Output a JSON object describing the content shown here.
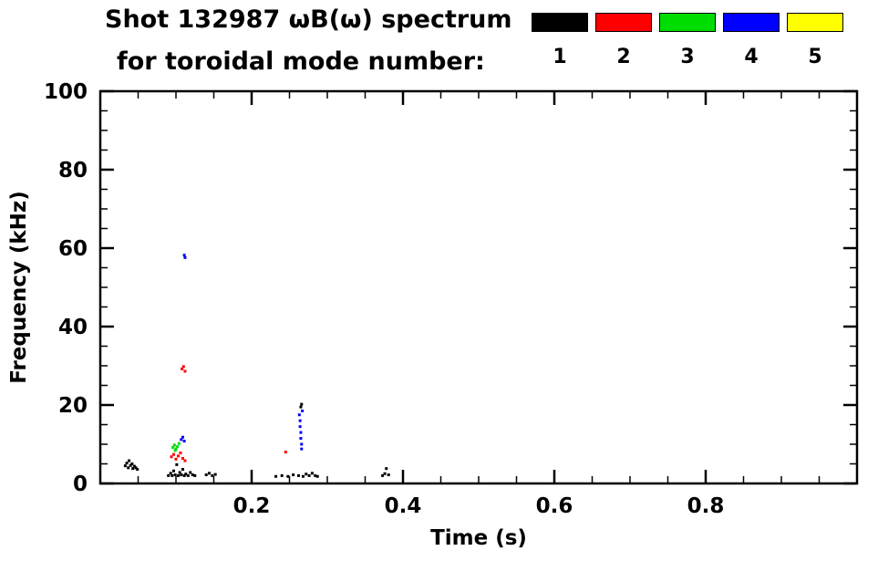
{
  "chart_data": {
    "type": "scatter",
    "title": "Shot 132987 ωB(ω) spectrum",
    "subtitle": "for toroidal mode number:",
    "xlabel": "Time (s)",
    "ylabel": "Frequency (kHz)",
    "xlim": [
      0.0,
      1.0
    ],
    "ylim": [
      0,
      100
    ],
    "grid": false,
    "legend_position": "top-right",
    "x_ticks": {
      "major": [
        {
          "v": 0.2,
          "label": "0.2"
        },
        {
          "v": 0.4,
          "label": "0.4"
        },
        {
          "v": 0.6,
          "label": "0.6"
        },
        {
          "v": 0.8,
          "label": "0.8"
        }
      ],
      "minor_step": 0.05
    },
    "y_ticks": {
      "major": [
        {
          "v": 0,
          "label": "0"
        },
        {
          "v": 20,
          "label": "20"
        },
        {
          "v": 40,
          "label": "40"
        },
        {
          "v": 60,
          "label": "60"
        },
        {
          "v": 80,
          "label": "80"
        },
        {
          "v": 100,
          "label": "100"
        }
      ],
      "minor_step": 5
    },
    "legend": [
      {
        "label": "1",
        "color": "#000000"
      },
      {
        "label": "2",
        "color": "#ff0000"
      },
      {
        "label": "3",
        "color": "#00dd00"
      },
      {
        "label": "4",
        "color": "#0000ff"
      },
      {
        "label": "5",
        "color": "#ffff00"
      }
    ],
    "series": [
      {
        "name": "n=1",
        "color": "#000000",
        "points": [
          [
            0.033,
            4.5
          ],
          [
            0.035,
            5.2
          ],
          [
            0.037,
            4.0
          ],
          [
            0.038,
            5.8
          ],
          [
            0.04,
            4.6
          ],
          [
            0.042,
            5.0
          ],
          [
            0.043,
            3.8
          ],
          [
            0.045,
            4.4
          ],
          [
            0.047,
            4.0
          ],
          [
            0.049,
            3.6
          ],
          [
            0.09,
            2.0
          ],
          [
            0.093,
            2.6
          ],
          [
            0.095,
            2.0
          ],
          [
            0.097,
            3.2
          ],
          [
            0.099,
            2.2
          ],
          [
            0.101,
            4.8
          ],
          [
            0.103,
            2.0
          ],
          [
            0.105,
            2.8
          ],
          [
            0.107,
            2.2
          ],
          [
            0.109,
            3.6
          ],
          [
            0.111,
            2.0
          ],
          [
            0.113,
            2.4
          ],
          [
            0.116,
            2.0
          ],
          [
            0.119,
            2.8
          ],
          [
            0.122,
            2.2
          ],
          [
            0.125,
            2.0
          ],
          [
            0.14,
            2.2
          ],
          [
            0.144,
            2.6
          ],
          [
            0.148,
            2.0
          ],
          [
            0.152,
            2.3
          ],
          [
            0.232,
            1.8
          ],
          [
            0.24,
            2.0
          ],
          [
            0.248,
            1.8
          ],
          [
            0.255,
            2.2
          ],
          [
            0.262,
            2.0
          ],
          [
            0.265,
            19.5
          ],
          [
            0.266,
            20.2
          ],
          [
            0.268,
            1.8
          ],
          [
            0.272,
            2.4
          ],
          [
            0.276,
            2.0
          ],
          [
            0.28,
            2.6
          ],
          [
            0.284,
            2.0
          ],
          [
            0.287,
            1.8
          ],
          [
            0.373,
            2.0
          ],
          [
            0.376,
            2.5
          ],
          [
            0.378,
            3.8
          ],
          [
            0.381,
            2.2
          ]
        ]
      },
      {
        "name": "n=2",
        "color": "#ff0000",
        "points": [
          [
            0.094,
            6.8
          ],
          [
            0.097,
            7.4
          ],
          [
            0.1,
            6.2
          ],
          [
            0.103,
            7.0
          ],
          [
            0.106,
            7.8
          ],
          [
            0.109,
            6.4
          ],
          [
            0.112,
            5.8
          ],
          [
            0.108,
            29.2
          ],
          [
            0.11,
            29.8
          ],
          [
            0.112,
            28.6
          ],
          [
            0.245,
            8.0
          ]
        ]
      },
      {
        "name": "n=3",
        "color": "#00dd00",
        "points": [
          [
            0.096,
            9.2
          ],
          [
            0.098,
            9.8
          ],
          [
            0.1,
            8.8
          ],
          [
            0.102,
            9.4
          ],
          [
            0.104,
            10.2
          ],
          [
            0.099,
            8.4
          ]
        ]
      },
      {
        "name": "n=4",
        "color": "#0000ff",
        "points": [
          [
            0.107,
            11.2
          ],
          [
            0.109,
            11.8
          ],
          [
            0.111,
            10.8
          ],
          [
            0.111,
            58.2
          ],
          [
            0.112,
            57.6
          ],
          [
            0.263,
            17.5
          ],
          [
            0.264,
            16.0
          ],
          [
            0.264,
            14.5
          ],
          [
            0.265,
            13.0
          ],
          [
            0.265,
            11.5
          ],
          [
            0.266,
            10.0
          ],
          [
            0.266,
            8.8
          ],
          [
            0.267,
            18.5
          ]
        ]
      },
      {
        "name": "n=5",
        "color": "#ffff00",
        "points": []
      }
    ]
  }
}
